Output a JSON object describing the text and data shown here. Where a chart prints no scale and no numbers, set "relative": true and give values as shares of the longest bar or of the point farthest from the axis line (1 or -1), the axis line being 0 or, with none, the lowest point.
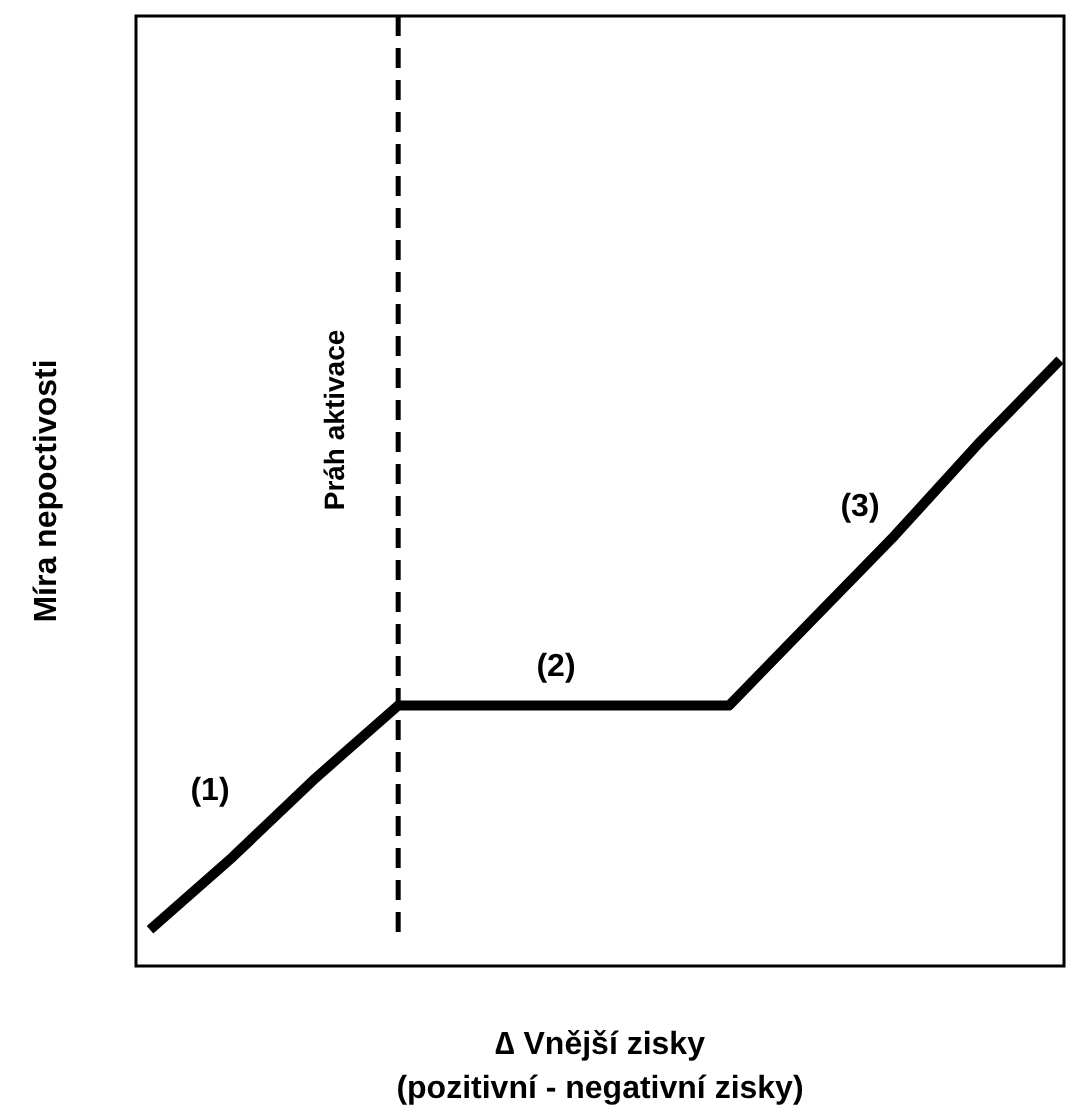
{
  "chart_data": {
    "type": "line",
    "relative": true,
    "xlabel": "∆ Vnější zisky\n(pozitivní - negativní zisky)",
    "ylabel": "Míra nepoctivosti",
    "categories": [
      null,
      null,
      null,
      null,
      null,
      null,
      null,
      null,
      null,
      null,
      null,
      null
    ],
    "marker": "none",
    "line_style": "solid",
    "series": [
      {
        "color": "#000000",
        "values": [
          0.06,
          0.18,
          0.31,
          0.43,
          0.43,
          0.43,
          0.43,
          0.43,
          0.57,
          0.71,
          0.86,
          1
        ]
      }
    ],
    "annotations": [
      "(1)",
      "(2)",
      "(3)",
      "Práh aktivace"
    ]
  }
}
